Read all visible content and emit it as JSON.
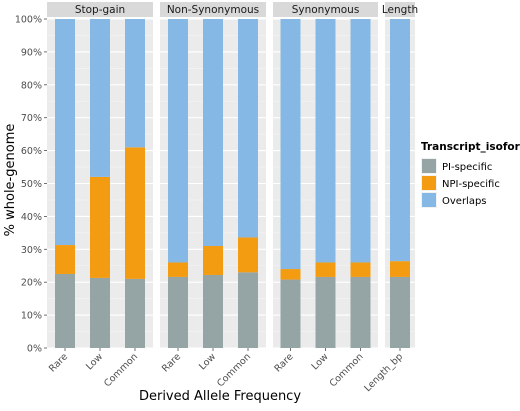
{
  "chart_data": {
    "type": "bar",
    "stacked": true,
    "ylabel": "% whole-genome",
    "xlabel": "Derived Allele Frequency",
    "yticks": [
      "0%",
      "10%",
      "20%",
      "30%",
      "40%",
      "50%",
      "60%",
      "70%",
      "80%",
      "90%",
      "100%"
    ],
    "ylim": [
      0,
      100
    ],
    "grid": true,
    "legend": {
      "title": "Transcript_isoform",
      "position": "right",
      "entries": [
        {
          "name": "PI-specific",
          "color": "#95a5a6"
        },
        {
          "name": "NPI-specific",
          "color": "#f39c12"
        },
        {
          "name": "Overlaps",
          "color": "#85b8e4"
        }
      ]
    },
    "facets": [
      {
        "label": "Stop-gain",
        "categories": [
          "Rare",
          "Low",
          "Common"
        ],
        "series": [
          {
            "name": "PI-specific",
            "values": [
              22.5,
              21.3,
              21.0
            ]
          },
          {
            "name": "NPI-specific",
            "values": [
              8.8,
              30.7,
              40.0
            ]
          },
          {
            "name": "Overlaps",
            "values": [
              68.7,
              48.0,
              39.0
            ]
          }
        ]
      },
      {
        "label": "Non-Synonymous",
        "categories": [
          "Rare",
          "Low",
          "Common"
        ],
        "series": [
          {
            "name": "PI-specific",
            "values": [
              21.6,
              22.2,
              23.0
            ]
          },
          {
            "name": "NPI-specific",
            "values": [
              4.4,
              8.8,
              10.6
            ]
          },
          {
            "name": "Overlaps",
            "values": [
              74.0,
              69.0,
              66.4
            ]
          }
        ]
      },
      {
        "label": "Synonymous",
        "categories": [
          "Rare",
          "Low",
          "Common"
        ],
        "series": [
          {
            "name": "PI-specific",
            "values": [
              20.8,
              21.6,
              21.6
            ]
          },
          {
            "name": "NPI-specific",
            "values": [
              3.2,
              4.4,
              4.4
            ]
          },
          {
            "name": "Overlaps",
            "values": [
              76.0,
              74.0,
              74.0
            ]
          }
        ]
      },
      {
        "label": "Length",
        "categories": [
          "Length_bp"
        ],
        "series": [
          {
            "name": "PI-specific",
            "values": [
              21.6
            ]
          },
          {
            "name": "NPI-specific",
            "values": [
              4.8
            ]
          },
          {
            "name": "Overlaps",
            "values": [
              73.6
            ]
          }
        ]
      }
    ]
  }
}
